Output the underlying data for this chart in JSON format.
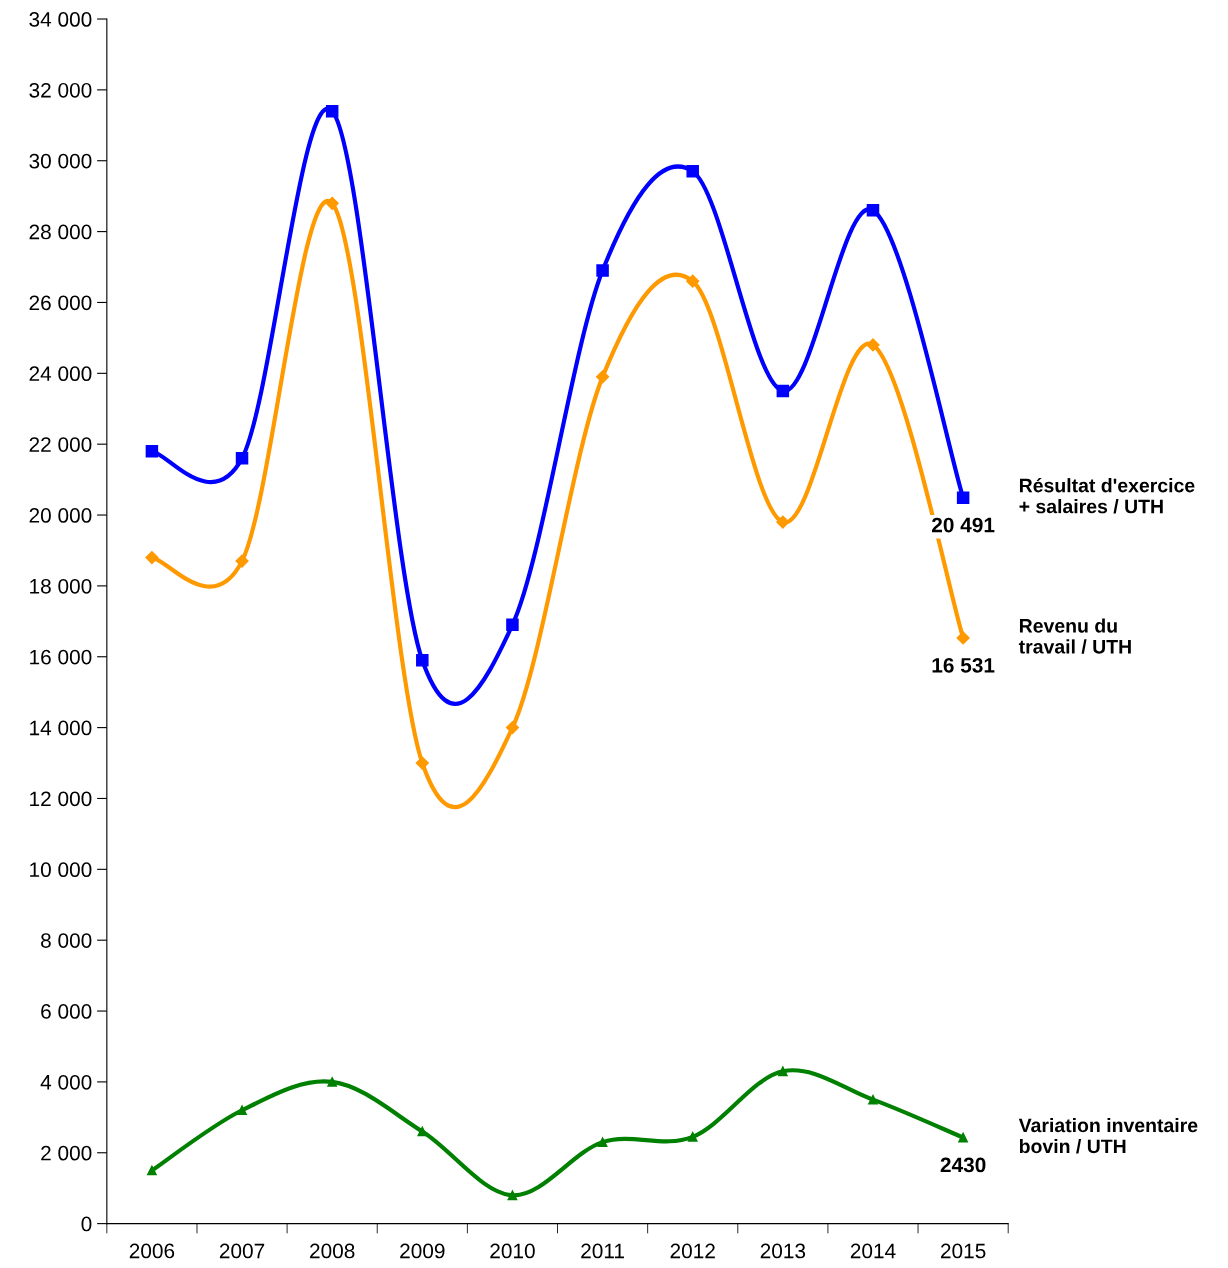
{
  "chart_data": {
    "type": "line",
    "categories": [
      "2006",
      "2007",
      "2008",
      "2009",
      "2010",
      "2011",
      "2012",
      "2013",
      "2014",
      "2015"
    ],
    "series": [
      {
        "name": "Résultat d'exercice\n+ salaires / UTH",
        "color": "#0000ff",
        "marker": "square",
        "values": [
          21800,
          21600,
          31400,
          15900,
          16900,
          26900,
          29700,
          23500,
          28600,
          20491
        ],
        "value_labels": [
          null,
          null,
          null,
          null,
          null,
          null,
          null,
          null,
          null,
          "20 491"
        ]
      },
      {
        "name": "Revenu du\ntravail / UTH",
        "color": "#ff9900",
        "marker": "diamond",
        "values": [
          18800,
          18700,
          28800,
          13000,
          14000,
          23900,
          26600,
          19800,
          24800,
          16531
        ],
        "value_labels": [
          null,
          null,
          null,
          null,
          null,
          null,
          null,
          null,
          null,
          "16 531"
        ]
      },
      {
        "name": "Variation inventaire\nbovin / UTH",
        "color": "#008000",
        "marker": "triangle",
        "values": [
          1500,
          3200,
          4000,
          2600,
          800,
          2300,
          2450,
          4300,
          3500,
          2430
        ],
        "value_labels": [
          null,
          null,
          null,
          null,
          null,
          null,
          null,
          null,
          null,
          "2430"
        ]
      }
    ],
    "ylim": [
      0,
      34000
    ],
    "yticks": [
      {
        "value": 0,
        "label": "0"
      },
      {
        "value": 2000,
        "label": "2 000"
      },
      {
        "value": 4000,
        "label": "4 000"
      },
      {
        "value": 6000,
        "label": "6 000"
      },
      {
        "value": 8000,
        "label": "8 000"
      },
      {
        "value": 10000,
        "label": "10 000"
      },
      {
        "value": 12000,
        "label": "12 000"
      },
      {
        "value": 14000,
        "label": "14 000"
      },
      {
        "value": 16000,
        "label": "16 000"
      },
      {
        "value": 18000,
        "label": "18 000"
      },
      {
        "value": 20000,
        "label": "20 000"
      },
      {
        "value": 22000,
        "label": "22 000"
      },
      {
        "value": 24000,
        "label": "24 000"
      },
      {
        "value": 26000,
        "label": "26 000"
      },
      {
        "value": 28000,
        "label": "28 000"
      },
      {
        "value": 30000,
        "label": "30 000"
      },
      {
        "value": 32000,
        "label": "32 000"
      },
      {
        "value": 34000,
        "label": "34 000"
      }
    ],
    "grid": false,
    "legend": false,
    "line_style": "solid"
  }
}
